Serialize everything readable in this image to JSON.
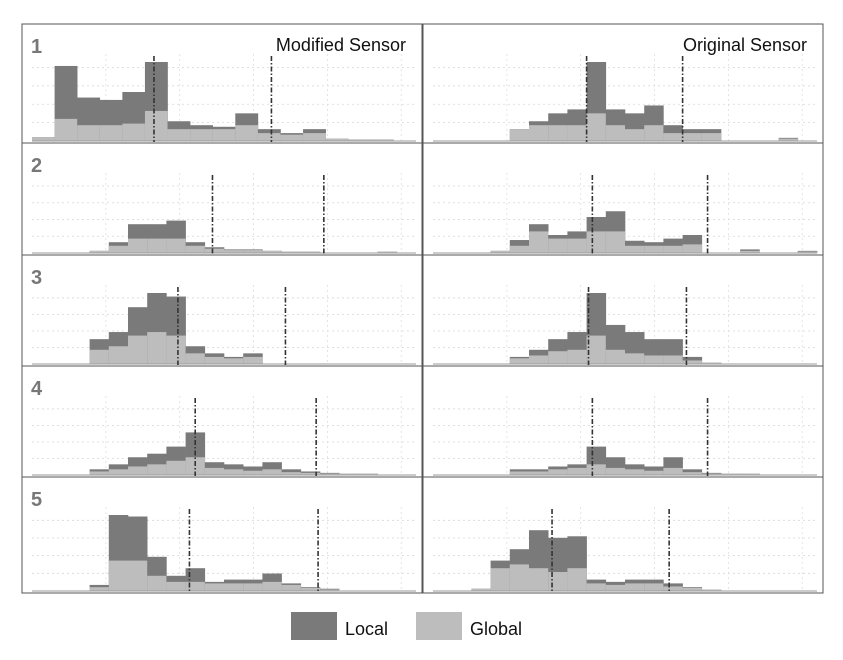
{
  "figure": {
    "legend": [
      {
        "name": "Local",
        "color": "#7a7a7a"
      },
      {
        "name": "Global",
        "color": "#bdbdbd"
      }
    ]
  },
  "chart_data": [
    {
      "type": "bar",
      "title": "Modified Sensor",
      "row_label": "1",
      "grid": true,
      "bins": 17,
      "ylim": [
        0,
        100
      ],
      "local": [
        5,
        95,
        55,
        52,
        62,
        100,
        25,
        20,
        18,
        35,
        15,
        10,
        15,
        3,
        2,
        2,
        0
      ],
      "global": [
        5,
        28,
        20,
        20,
        22,
        38,
        15,
        15,
        15,
        20,
        10,
        8,
        10,
        3,
        2,
        2,
        0
      ],
      "markers": [
        5.4,
        10.6
      ]
    },
    {
      "type": "bar",
      "title": "Original Sensor",
      "row_label": "",
      "grid": true,
      "bins": 20,
      "ylim": [
        0,
        100
      ],
      "local": [
        0,
        0,
        0,
        0,
        15,
        25,
        35,
        40,
        100,
        40,
        35,
        45,
        20,
        15,
        15,
        0,
        0,
        0,
        4,
        0
      ],
      "global": [
        0,
        0,
        0,
        0,
        15,
        20,
        20,
        20,
        35,
        20,
        15,
        20,
        10,
        10,
        10,
        0,
        0,
        0,
        3,
        0
      ],
      "markers": [
        8.0,
        13.0
      ]
    },
    {
      "type": "bar",
      "title": "",
      "row_label": "2",
      "grid": true,
      "bins": 20,
      "ylim": [
        0,
        100
      ],
      "local": [
        0,
        0,
        0,
        3,
        15,
        40,
        40,
        45,
        15,
        8,
        5,
        5,
        3,
        2,
        2,
        0,
        0,
        0,
        2,
        0
      ],
      "global": [
        0,
        0,
        0,
        3,
        10,
        20,
        20,
        20,
        10,
        6,
        4,
        4,
        3,
        2,
        2,
        0,
        0,
        0,
        2,
        0
      ],
      "markers": [
        9.4,
        15.2
      ]
    },
    {
      "type": "bar",
      "title": "",
      "row_label": "",
      "grid": true,
      "bins": 20,
      "ylim": [
        0,
        100
      ],
      "local": [
        0,
        0,
        0,
        3,
        18,
        40,
        25,
        30,
        50,
        58,
        17,
        15,
        20,
        25,
        0,
        0,
        5,
        0,
        0,
        3
      ],
      "global": [
        0,
        0,
        0,
        3,
        10,
        30,
        20,
        20,
        30,
        30,
        10,
        10,
        10,
        12,
        0,
        0,
        3,
        0,
        0,
        2
      ],
      "markers": [
        8.3,
        14.3
      ]
    },
    {
      "type": "bar",
      "title": "",
      "row_label": "3",
      "grid": true,
      "bins": 20,
      "ylim": [
        0,
        100
      ],
      "local": [
        0,
        0,
        0,
        35,
        45,
        80,
        100,
        95,
        25,
        15,
        10,
        15,
        0,
        0,
        0,
        0,
        0,
        0,
        0,
        0
      ],
      "global": [
        0,
        0,
        0,
        20,
        25,
        40,
        45,
        40,
        15,
        10,
        8,
        10,
        0,
        0,
        0,
        0,
        0,
        0,
        0,
        0
      ],
      "markers": [
        7.6,
        13.2
      ]
    },
    {
      "type": "bar",
      "title": "",
      "row_label": "",
      "grid": true,
      "bins": 20,
      "ylim": [
        0,
        100
      ],
      "local": [
        0,
        0,
        0,
        0,
        10,
        20,
        35,
        45,
        100,
        55,
        45,
        35,
        35,
        10,
        2,
        0,
        0,
        0,
        0,
        0
      ],
      "global": [
        0,
        0,
        0,
        0,
        8,
        12,
        18,
        20,
        40,
        20,
        15,
        12,
        12,
        5,
        2,
        0,
        0,
        0,
        0,
        0
      ],
      "markers": [
        8.1,
        13.2
      ]
    },
    {
      "type": "bar",
      "title": "",
      "row_label": "4",
      "grid": true,
      "bins": 20,
      "ylim": [
        0,
        100
      ],
      "local": [
        0,
        0,
        0,
        8,
        15,
        25,
        30,
        40,
        60,
        18,
        15,
        12,
        18,
        8,
        5,
        3,
        2,
        2,
        0,
        0
      ],
      "global": [
        0,
        0,
        0,
        5,
        8,
        12,
        15,
        20,
        25,
        10,
        8,
        6,
        8,
        4,
        3,
        2,
        2,
        2,
        0,
        0
      ],
      "markers": [
        8.5,
        14.8
      ]
    },
    {
      "type": "bar",
      "title": "",
      "row_label": "",
      "grid": true,
      "bins": 20,
      "ylim": [
        0,
        100
      ],
      "local": [
        0,
        0,
        0,
        0,
        8,
        8,
        12,
        15,
        40,
        25,
        15,
        12,
        25,
        8,
        3,
        2,
        2,
        0,
        0,
        0
      ],
      "global": [
        0,
        0,
        0,
        0,
        5,
        5,
        8,
        10,
        15,
        10,
        8,
        6,
        10,
        4,
        2,
        2,
        2,
        0,
        0,
        0
      ],
      "markers": [
        8.3,
        14.3
      ]
    },
    {
      "type": "bar",
      "title": "",
      "row_label": "5",
      "grid": true,
      "bins": 20,
      "ylim": [
        0,
        100
      ],
      "local": [
        0,
        0,
        0,
        8,
        100,
        98,
        45,
        20,
        30,
        12,
        15,
        15,
        23,
        10,
        5,
        3,
        0,
        0,
        0,
        0
      ],
      "global": [
        0,
        0,
        0,
        5,
        40,
        40,
        20,
        12,
        12,
        10,
        10,
        10,
        12,
        8,
        4,
        2,
        0,
        0,
        0,
        0
      ],
      "markers": [
        8.2,
        14.9
      ]
    },
    {
      "type": "bar",
      "title": "",
      "row_label": "",
      "grid": true,
      "bins": 20,
      "ylim": [
        0,
        100
      ],
      "local": [
        0,
        0,
        3,
        40,
        55,
        80,
        70,
        72,
        15,
        12,
        15,
        15,
        10,
        5,
        2,
        0,
        0,
        0,
        0,
        0
      ],
      "global": [
        0,
        0,
        3,
        30,
        35,
        30,
        25,
        30,
        10,
        8,
        10,
        10,
        6,
        4,
        2,
        0,
        0,
        0,
        0,
        0
      ],
      "markers": [
        6.2,
        12.3
      ]
    }
  ]
}
